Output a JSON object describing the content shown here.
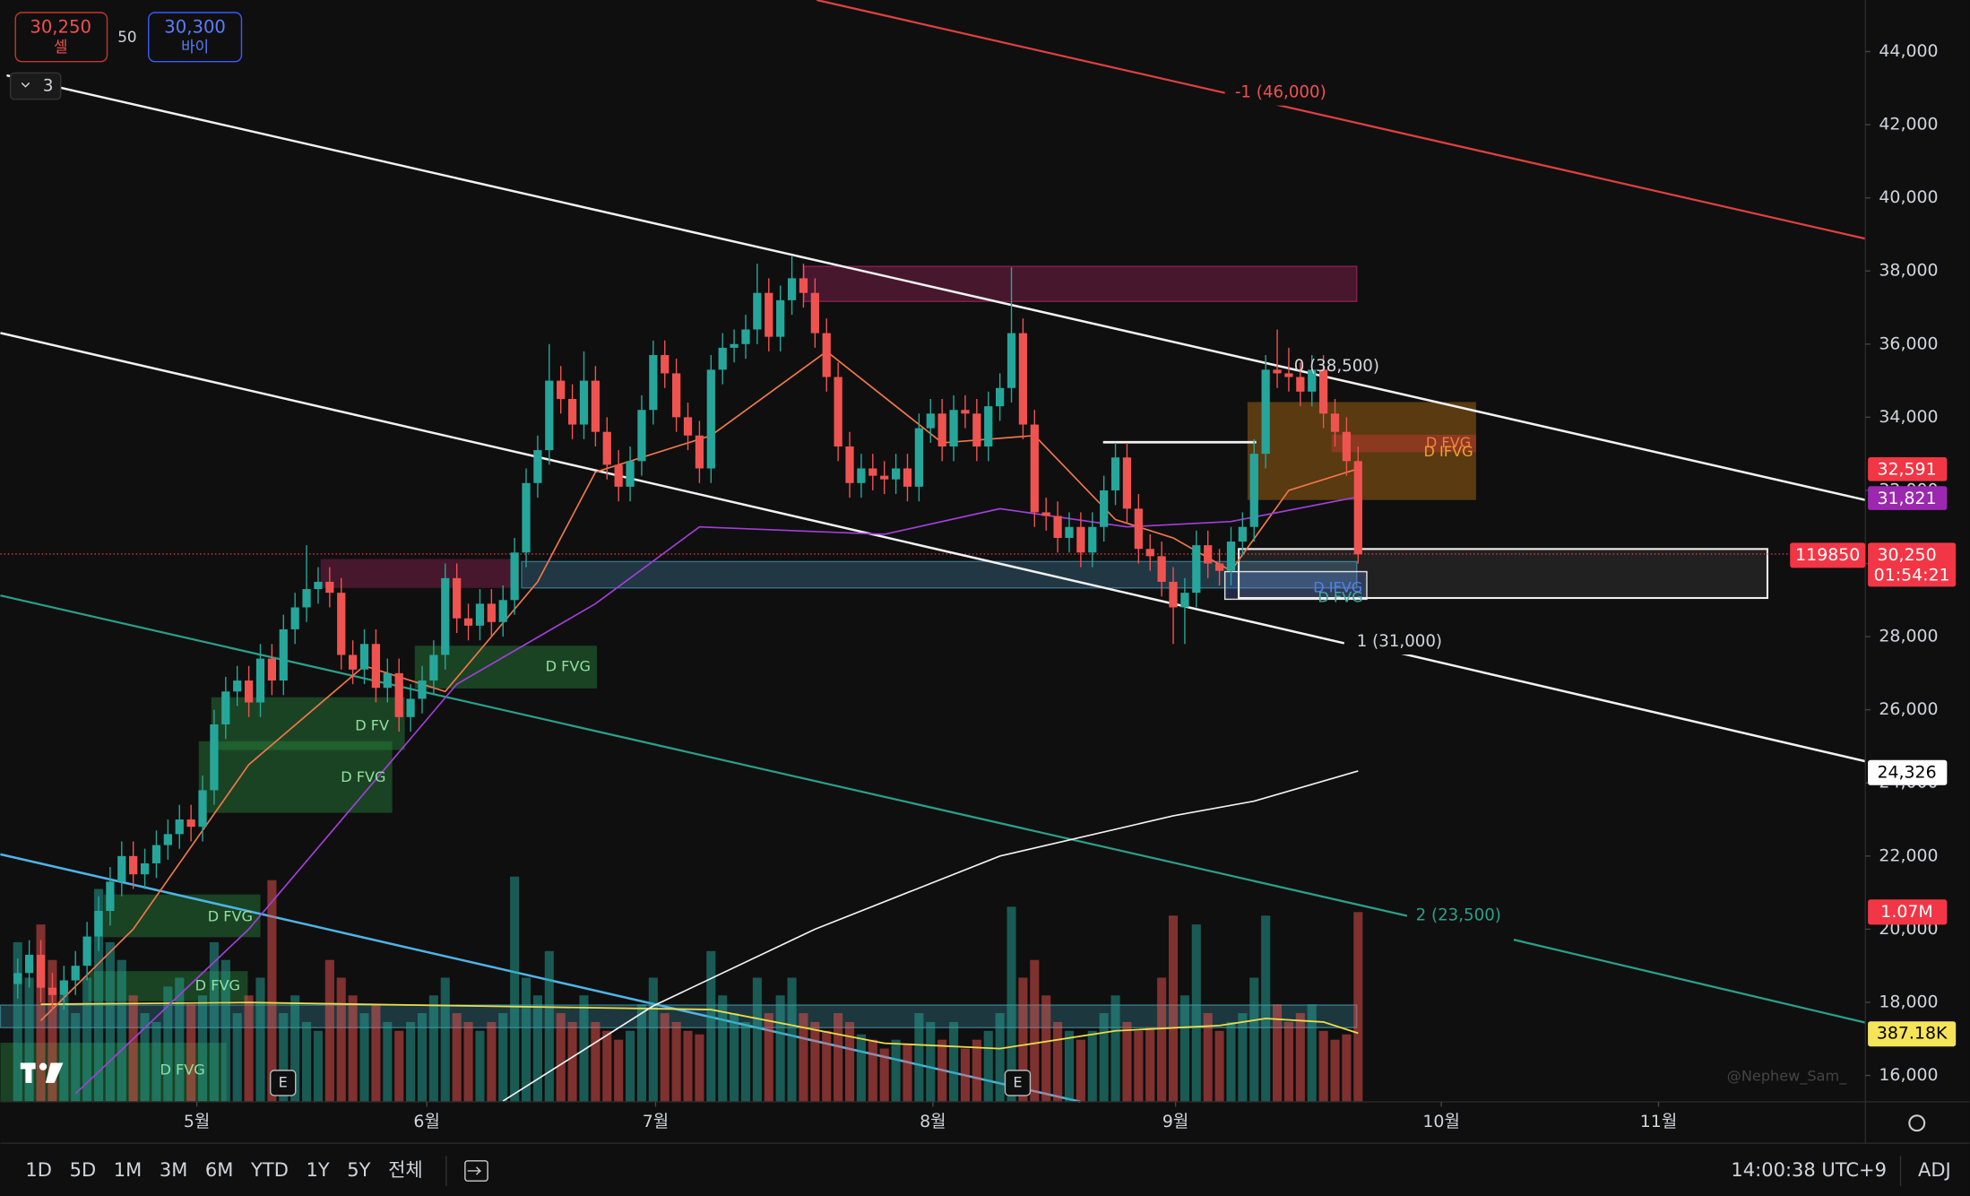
{
  "toolbar": {
    "sell_price": "30,250",
    "sell_label": "셀",
    "spread": "50",
    "buy_price": "30,300",
    "buy_label": "바이",
    "indicators_count": "3"
  },
  "chart_data": {
    "type": "candlestick",
    "up_color": "#26a69a",
    "down_color": "#ef5350",
    "xlim": [
      -1.5,
      159.9
    ],
    "xticks": [
      {
        "value": 15.5,
        "label": "5월"
      },
      {
        "value": 35.4,
        "label": "6월"
      },
      {
        "value": 55.2,
        "label": "7월"
      },
      {
        "value": 79.2,
        "label": "8월"
      },
      {
        "value": 100.2,
        "label": "9월"
      },
      {
        "value": 123.2,
        "label": "10월"
      },
      {
        "value": 142,
        "label": "11월"
      }
    ],
    "ylim": [
      15280,
      45410
    ],
    "yticks": [
      {
        "value": 16000,
        "label": "16,000"
      },
      {
        "value": 18000,
        "label": "18,000"
      },
      {
        "value": 20000,
        "label": "20,000"
      },
      {
        "value": 22000,
        "label": "22,000"
      },
      {
        "value": 24000,
        "label": "24,000"
      },
      {
        "value": 26000,
        "label": "26,000"
      },
      {
        "value": 28000,
        "label": "28,000"
      },
      {
        "value": 30000,
        "label": "30,000"
      },
      {
        "value": 32000,
        "label": "32,000"
      },
      {
        "value": 34000,
        "label": "34,000"
      },
      {
        "value": 36000,
        "label": "36,000"
      },
      {
        "value": 38000,
        "label": "38,000"
      },
      {
        "value": 40000,
        "label": "40,000"
      },
      {
        "value": 42000,
        "label": "42,000"
      },
      {
        "value": 44000,
        "label": "44,000"
      }
    ],
    "open": [
      18500,
      18800,
      19300,
      18400,
      18200,
      18600,
      19000,
      19800,
      20500,
      21300,
      22000,
      21500,
      21800,
      22300,
      22600,
      23000,
      22800,
      23800,
      25600,
      26500,
      26800,
      26200,
      27400,
      26800,
      28200,
      28800,
      29300,
      29500,
      29200,
      27500,
      27100,
      27800,
      26600,
      27000,
      25800,
      26300,
      26800,
      27500,
      29600,
      28500,
      28300,
      28900,
      28400,
      29000,
      30300,
      32200,
      33100,
      35000,
      34500,
      33800,
      35000,
      33600,
      32700,
      32100,
      32800,
      34200,
      35700,
      35200,
      34000,
      33500,
      32600,
      35300,
      35900,
      36000,
      36400,
      37400,
      36200,
      37200,
      37800,
      37400,
      36300,
      35100,
      33200,
      32200,
      32600,
      32400,
      32300,
      32600,
      32100,
      33700,
      34100,
      33200,
      34200,
      34100,
      33200,
      34300,
      34800,
      36300,
      33800,
      31400,
      31300,
      30700,
      31000,
      30300,
      31000,
      32000,
      32900,
      31500,
      30400,
      30200,
      29500,
      28800,
      29200,
      30500,
      30000,
      29800,
      30600,
      31000,
      33000,
      35300,
      35200,
      35100,
      34700,
      35300,
      34100,
      33600,
      32800
    ],
    "high": [
      19200,
      19700,
      19700,
      18800,
      19000,
      19400,
      20200,
      20900,
      21700,
      22400,
      22400,
      22200,
      22700,
      23000,
      23400,
      23400,
      24200,
      26000,
      26900,
      27200,
      27200,
      27800,
      27800,
      28600,
      29200,
      30500,
      29900,
      29900,
      29600,
      27900,
      28200,
      28200,
      27400,
      27400,
      26700,
      27200,
      27900,
      30000,
      30000,
      28900,
      29300,
      29300,
      29400,
      30700,
      32600,
      33500,
      36000,
      35400,
      34900,
      35800,
      35400,
      34000,
      33100,
      33200,
      34600,
      36100,
      36100,
      35600,
      34400,
      33900,
      35700,
      36300,
      36400,
      36800,
      38200,
      37800,
      37600,
      38400,
      38200,
      37800,
      36700,
      35500,
      33600,
      33000,
      33000,
      32800,
      33000,
      33000,
      34100,
      34500,
      34500,
      34600,
      34600,
      34500,
      34700,
      35200,
      38100,
      36700,
      34200,
      31800,
      31700,
      31400,
      31400,
      31400,
      32400,
      33300,
      33300,
      31900,
      30800,
      30600,
      29900,
      29600,
      30900,
      30900,
      30400,
      31000,
      31400,
      33400,
      35700,
      36400,
      35900,
      35500,
      35700,
      35700,
      34500,
      34000,
      33200
    ],
    "low": [
      18100,
      18400,
      18000,
      17800,
      17800,
      18200,
      18600,
      19400,
      20100,
      20900,
      21100,
      21100,
      21400,
      21900,
      22200,
      22400,
      22400,
      23400,
      25200,
      26100,
      25800,
      25800,
      26400,
      26400,
      27800,
      28400,
      28900,
      28800,
      27100,
      26700,
      26700,
      26200,
      26200,
      25400,
      25400,
      25900,
      26400,
      27100,
      28100,
      27900,
      27900,
      28000,
      28000,
      28600,
      29900,
      31800,
      32700,
      34100,
      33400,
      33400,
      33200,
      32300,
      31700,
      31700,
      32400,
      33800,
      34800,
      33600,
      33100,
      32200,
      32200,
      34900,
      35500,
      35600,
      36000,
      35800,
      35800,
      36800,
      37000,
      35900,
      34700,
      32800,
      31800,
      31800,
      32000,
      31900,
      31900,
      31700,
      31700,
      33300,
      32800,
      32800,
      33700,
      32800,
      32800,
      33900,
      34400,
      33400,
      31000,
      30900,
      30300,
      30300,
      29900,
      29900,
      30600,
      31600,
      31100,
      30000,
      29800,
      29100,
      27800,
      27800,
      28800,
      29600,
      29400,
      29400,
      30200,
      30600,
      32600,
      34800,
      34700,
      34300,
      34300,
      33700,
      33200,
      32400,
      30000
    ],
    "close": [
      18800,
      19300,
      18400,
      18200,
      18600,
      19000,
      19800,
      20500,
      21300,
      22000,
      21500,
      21800,
      22300,
      22600,
      23000,
      22800,
      23800,
      25600,
      26500,
      26800,
      26200,
      27400,
      26800,
      28200,
      28800,
      29300,
      29500,
      29200,
      27500,
      27100,
      27800,
      26600,
      27000,
      25800,
      26300,
      26800,
      27500,
      29600,
      28500,
      28300,
      28900,
      28400,
      29000,
      30300,
      32200,
      33100,
      35000,
      34500,
      33800,
      35000,
      33600,
      32700,
      32100,
      32800,
      34200,
      35700,
      35200,
      34000,
      33500,
      32600,
      35300,
      35900,
      36000,
      36400,
      37400,
      36200,
      37200,
      37800,
      37400,
      36300,
      35100,
      33200,
      32200,
      32600,
      32400,
      32300,
      32600,
      32100,
      33700,
      34100,
      33200,
      34200,
      34100,
      33200,
      34300,
      34800,
      36300,
      33800,
      31400,
      31300,
      30700,
      31000,
      30300,
      31000,
      32000,
      32900,
      31500,
      30400,
      30200,
      29500,
      28800,
      29200,
      30500,
      30000,
      29800,
      30600,
      31000,
      33000,
      35300,
      35200,
      35100,
      34700,
      35300,
      34100,
      33600,
      32800,
      30250
    ],
    "volume": [
      900000,
      700000,
      1000000,
      800000,
      600000,
      500000,
      700000,
      1200000,
      900000,
      800000,
      600000,
      500000,
      450000,
      650000,
      700000,
      550000,
      600000,
      900000,
      800000,
      500000,
      600000,
      700000,
      1250000,
      500000,
      600000,
      450000,
      400000,
      800000,
      700000,
      600000,
      500000,
      550000,
      450000,
      400000,
      450000,
      500000,
      600000,
      700000,
      500000,
      450000,
      400000,
      450000,
      500000,
      1270000,
      700000,
      600000,
      850000,
      500000,
      450000,
      600000,
      450000,
      400000,
      350000,
      400000,
      550000,
      700000,
      500000,
      450000,
      400000,
      380000,
      850000,
      600000,
      500000,
      450000,
      700000,
      500000,
      600000,
      700000,
      500000,
      450000,
      400000,
      500000,
      450000,
      380000,
      350000,
      300000,
      350000,
      330000,
      500000,
      450000,
      350000,
      450000,
      300000,
      350000,
      400000,
      500000,
      1100000,
      700000,
      800000,
      600000,
      450000,
      400000,
      350000,
      400000,
      500000,
      600000,
      450000,
      400000,
      420000,
      700000,
      1050000,
      600000,
      1000000,
      500000,
      400000,
      450000,
      500000,
      700000,
      1050000,
      550000,
      450000,
      500000,
      550000,
      400000,
      350000,
      380000,
      1070000
    ],
    "volume_ylim": [
      0,
      6214000
    ],
    "moving_averages": [
      {
        "color": "#f0774a",
        "x": [
          2,
          10,
          20,
          30,
          37,
          45,
          50,
          60,
          70,
          80,
          88,
          95,
          100,
          105,
          110,
          116
        ],
        "values": [
          17500,
          20000,
          24500,
          27200,
          26500,
          29500,
          32500,
          33500,
          35800,
          33300,
          33500,
          31200,
          30700,
          29800,
          32000,
          32591
        ]
      },
      {
        "color": "#a23fd8",
        "x": [
          5,
          20,
          38,
          50,
          59,
          75,
          85,
          96,
          105,
          116
        ],
        "values": [
          15500,
          20000,
          26700,
          28900,
          31000,
          30800,
          31500,
          31000,
          31150,
          31821
        ]
      },
      {
        "color": "#f2f2f2",
        "x": [
          42,
          55,
          69,
          85,
          100,
          107,
          116
        ],
        "values": [
          15300,
          17900,
          20000,
          22000,
          23100,
          23500,
          24326
        ]
      }
    ],
    "volume_ma": {
      "color": "#e8dc4a",
      "x": [
        2,
        20,
        40,
        60,
        75,
        85,
        95,
        104,
        108,
        113,
        116
      ],
      "values": [
        550000,
        560000,
        540000,
        520000,
        330000,
        300000,
        400000,
        430000,
        470000,
        450000,
        387180
      ]
    },
    "annotations": [
      "-1 (46,000)",
      "0 (38,500)",
      "1 (31,000)",
      "2 (23,500)"
    ],
    "zones": [
      "D FVG",
      "D FV",
      "D FVG",
      "D FVG",
      "D FVG",
      "D FVG",
      "D FVG",
      "D IFVG",
      "D IFVG",
      "D FVG"
    ],
    "events": [
      "E",
      "E"
    ],
    "price_tags": [
      "32,591",
      "31,821",
      "119850",
      "30,250",
      "01:54:21",
      "24,326",
      "1.07M",
      "387.18K"
    ],
    "watermark": "@Nephew_Sam_"
  },
  "bottom_bar": {
    "timeframes": [
      "1D",
      "5D",
      "1M",
      "3M",
      "6M",
      "YTD",
      "1Y",
      "5Y",
      "전체"
    ],
    "clock": "14:00:38 UTC+9",
    "adj": "ADJ"
  }
}
